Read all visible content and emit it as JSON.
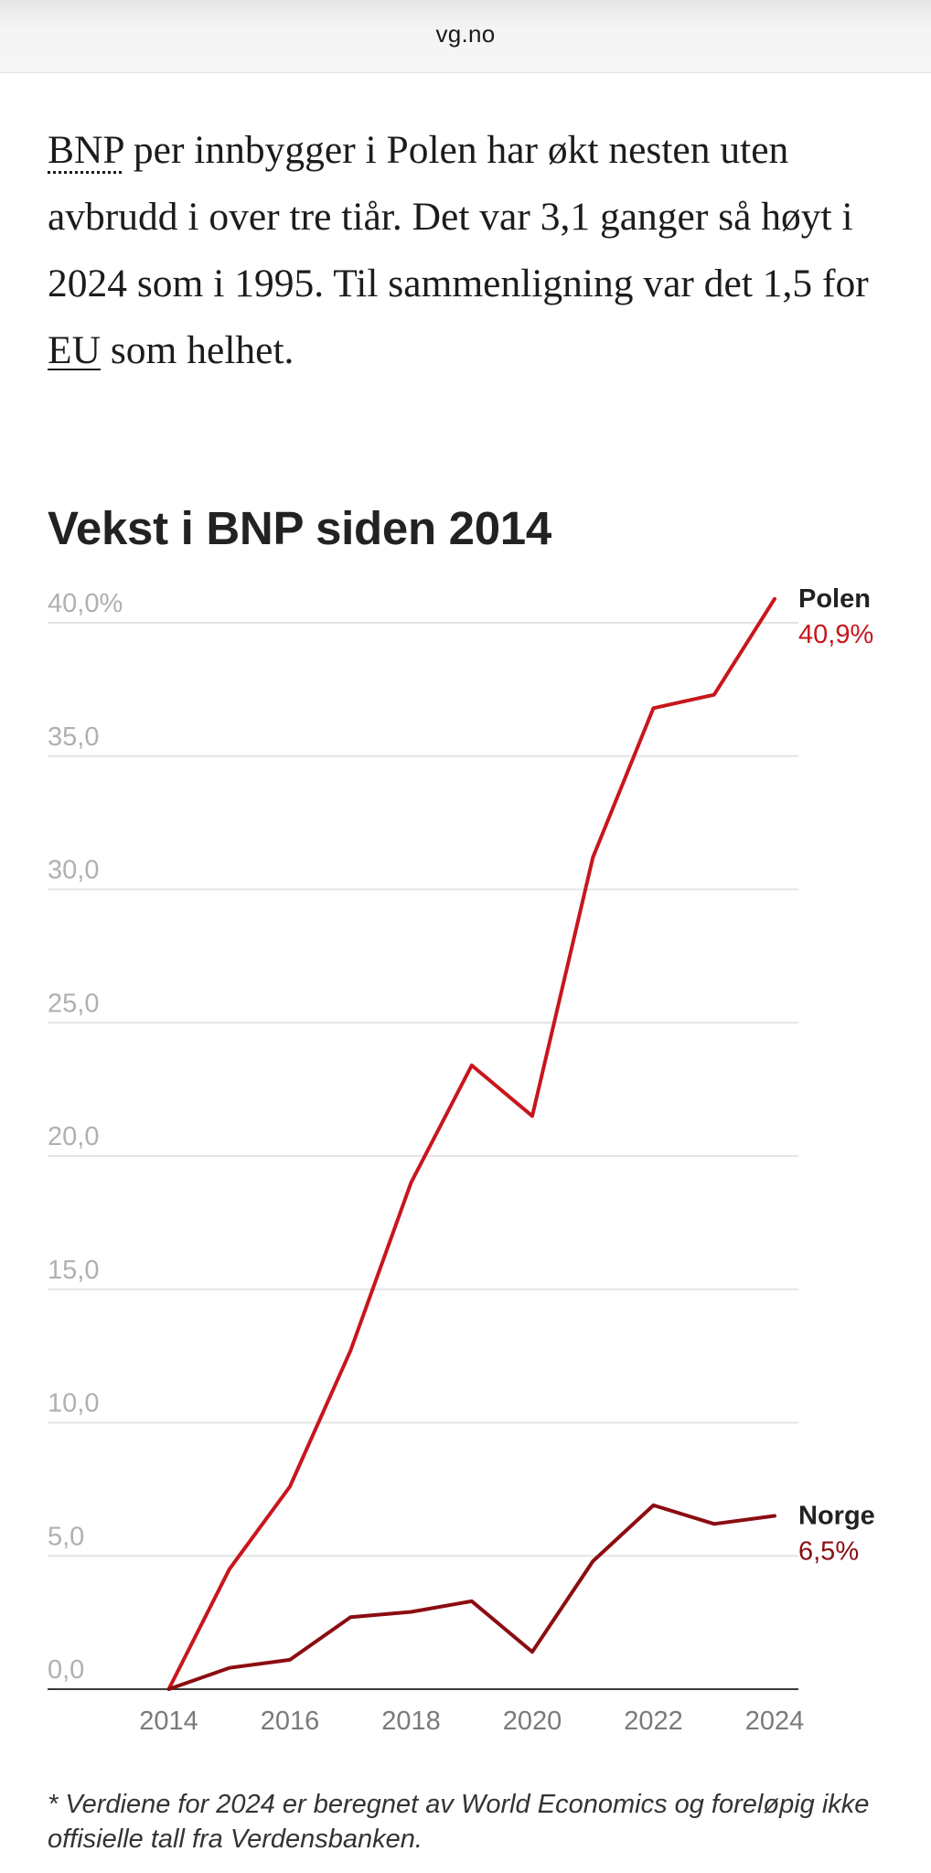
{
  "browser": {
    "url": "vg.no"
  },
  "intro": {
    "abbr_bnp": "BNP",
    "text_1": " per innbygger i Polen har økt nesten uten avbrudd i over tre tiår. Det var 3,1 ganger så høyt i 2024 som i 1995. Til sammenligning var det 1,5 for ",
    "abbr_eu": "EU",
    "text_2": " som helhet."
  },
  "footnote": "* Verdiene for 2024 er beregnet av World Economics og foreløpig ikke offisielle tall fra Verdensbanken.",
  "chart_data": {
    "type": "line",
    "title": "Vekst i BNP siden 2014",
    "xlabel": "",
    "ylabel": "",
    "x": [
      2014,
      2015,
      2016,
      2017,
      2018,
      2019,
      2020,
      2021,
      2022,
      2023,
      2024
    ],
    "x_ticks": [
      "2014",
      "2016",
      "2018",
      "2020",
      "2022",
      "2024"
    ],
    "y_ticks": [
      "0,0",
      "5,0",
      "10,0",
      "15,0",
      "20,0",
      "25,0",
      "30,0",
      "35,0",
      "40,0%"
    ],
    "ylim": [
      0,
      40
    ],
    "xlim": [
      2012,
      2024
    ],
    "grid": true,
    "legend": "end labels",
    "series": [
      {
        "name": "Polen",
        "end_label": "40,9%",
        "color": "#c8161d",
        "values": [
          0,
          4.5,
          7.6,
          12.7,
          19.0,
          23.4,
          21.5,
          31.2,
          36.8,
          37.3,
          40.9
        ]
      },
      {
        "name": "Norge",
        "end_label": "6,5%",
        "color": "#8b0d11",
        "values": [
          0,
          0.8,
          1.1,
          2.7,
          2.9,
          3.3,
          1.4,
          4.8,
          6.9,
          6.2,
          6.5
        ]
      }
    ]
  }
}
